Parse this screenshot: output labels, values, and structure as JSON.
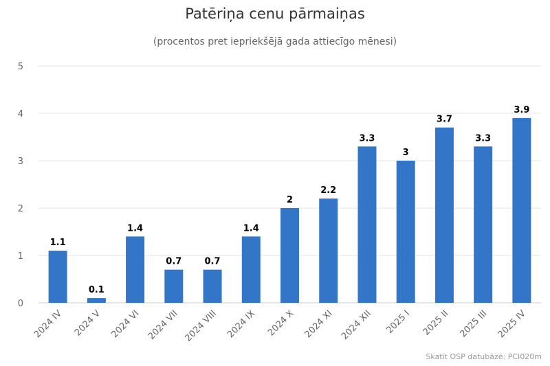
{
  "chart_data": {
    "type": "bar",
    "title": "Patēriņa cenu pārmaiņas",
    "subtitle": "(procentos pret iepriekšējā gada attiecīgo mēnesi)",
    "categories": [
      "2024 IV",
      "2024 V",
      "2024 VI",
      "2024 VII",
      "2024 VIII",
      "2024 IX",
      "2024 X",
      "2024 XI",
      "2024 XII",
      "2025 I",
      "2025 II",
      "2025 III",
      "2025 IV"
    ],
    "values": [
      1.1,
      0.1,
      1.4,
      0.7,
      0.7,
      1.4,
      2,
      2.2,
      3.3,
      3,
      3.7,
      3.3,
      3.9
    ],
    "data_labels": [
      "1.1",
      "0.1",
      "1.4",
      "0.7",
      "0.7",
      "1.4",
      "2",
      "2.2",
      "3.3",
      "3",
      "3.7",
      "3.3",
      "3.9"
    ],
    "ylim": [
      0,
      5
    ],
    "yticks": [
      0,
      1,
      2,
      3,
      4,
      5
    ],
    "grid": true,
    "bar_color": "#3375c6",
    "credit": "Skatīt OSP datubāzē: PCI020m"
  }
}
